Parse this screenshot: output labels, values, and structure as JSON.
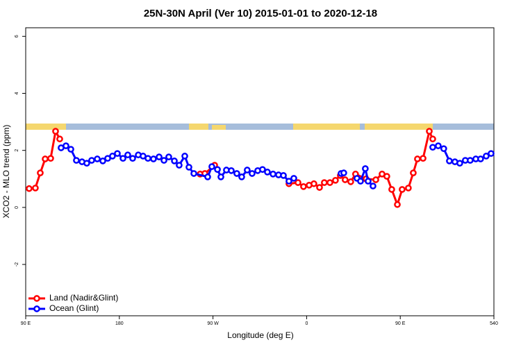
{
  "chart_data": {
    "type": "line",
    "title": "25N-30N April (Ver 10)   2015-01-01 to 2020-12-18",
    "x_label": "Longitude (deg E)",
    "y_label": "XCO2 - MLO trend (ppm)",
    "xlim": [
      90,
      540
    ],
    "ylim": [
      -3.8,
      6.3
    ],
    "xticks": [
      {
        "value": 90,
        "label": "90 E"
      },
      180,
      {
        "value": 270,
        "label": "90 W"
      },
      {
        "value": 360,
        "label": "0"
      },
      {
        "value": 450,
        "label": "90 E"
      },
      540
    ],
    "yticks": [
      -2,
      0,
      2,
      4,
      6
    ],
    "legend": "bottom-left",
    "series": [
      {
        "name": "Land (Nadir&Glint)",
        "color": "#ff0000",
        "x": [
          93.3,
          99.3,
          104.0,
          108.7,
          114.0,
          118.7,
          122.7,
          null,
          257.6,
          262.2,
          271.6,
          null,
          343.0,
          351.7,
          357.0,
          362.4,
          367.0,
          372.4,
          377.0,
          382.4,
          387.7,
          392.4,
          397.0,
          402.4,
          407.0,
          417.1,
          426.5,
          432.5,
          437.1,
          441.8,
          447.2,
          451.8,
          457.8,
          462.5,
          466.5,
          471.9,
          477.9,
          481.2
        ],
        "values": [
          0.66,
          0.68,
          1.21,
          1.7,
          1.72,
          2.67,
          2.4,
          null,
          1.17,
          1.19,
          1.48,
          null,
          0.83,
          0.87,
          0.73,
          0.78,
          0.83,
          0.7,
          0.87,
          0.87,
          0.95,
          1.12,
          0.97,
          0.9,
          1.17,
          1.0,
          0.97,
          1.17,
          1.09,
          0.63,
          0.1,
          0.63,
          0.68,
          1.21,
          1.7,
          1.72,
          2.67,
          2.4
        ]
      },
      {
        "name": "Ocean (Glint)",
        "color": "#0000ff",
        "x": [
          124.0,
          128.7,
          133.4,
          138.7,
          144.1,
          148.7,
          153.4,
          158.8,
          164.1,
          168.8,
          173.4,
          178.1,
          183.5,
          188.1,
          192.8,
          198.2,
          202.8,
          207.5,
          212.8,
          218.2,
          222.9,
          227.5,
          232.9,
          237.5,
          242.9,
          246.9,
          251.6,
          264.9,
          268.9,
          274.3,
          277.6,
          282.9,
          287.6,
          292.9,
          297.6,
          302.9,
          307.6,
          313.0,
          317.6,
          322.3,
          327.7,
          333.0,
          337.7,
          343.0,
          347.7,
          null,
          393.1,
          395.7,
          null,
          408.4,
          411.8,
          416.4,
          419.1,
          423.8,
          null,
          481.2,
          486.5,
          491.8,
          497.2,
          502.5,
          507.2,
          512.5,
          517.2,
          522.6,
          527.2,
          532.6,
          537.3
        ],
        "values": [
          2.09,
          2.16,
          2.04,
          1.65,
          1.6,
          1.55,
          1.65,
          1.7,
          1.63,
          1.72,
          1.8,
          1.89,
          1.72,
          1.84,
          1.72,
          1.84,
          1.8,
          1.72,
          1.7,
          1.77,
          1.65,
          1.77,
          1.63,
          1.48,
          1.8,
          1.41,
          1.19,
          1.07,
          1.43,
          1.33,
          1.07,
          1.31,
          1.29,
          1.19,
          1.07,
          1.31,
          1.19,
          1.29,
          1.33,
          1.24,
          1.17,
          1.14,
          1.12,
          0.92,
          1.02,
          null,
          1.19,
          1.21,
          null,
          1.02,
          0.92,
          1.36,
          0.92,
          0.75,
          null,
          2.11,
          2.16,
          2.06,
          1.63,
          1.6,
          1.55,
          1.65,
          1.65,
          1.7,
          1.7,
          1.8,
          1.89
        ]
      }
    ]
  }
}
